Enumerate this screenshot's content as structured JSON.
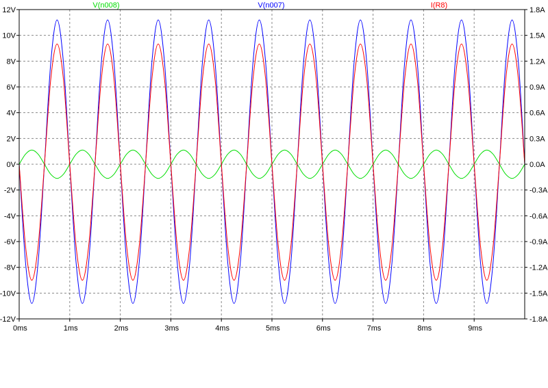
{
  "chart_data": {
    "type": "line",
    "title": "",
    "grid": true,
    "legend_placement": "top",
    "x": {
      "unit": "ms",
      "range": [
        0,
        10
      ],
      "ticks": [
        0,
        1,
        2,
        3,
        4,
        5,
        6,
        7,
        8,
        9
      ],
      "tick_labels": [
        "0ms",
        "1ms",
        "2ms",
        "3ms",
        "4ms",
        "5ms",
        "6ms",
        "7ms",
        "8ms",
        "9ms"
      ]
    },
    "y_left": {
      "unit": "V",
      "range": [
        -12,
        12
      ],
      "ticks": [
        12,
        10,
        8,
        6,
        4,
        2,
        0,
        -2,
        -4,
        -6,
        -8,
        -10,
        -12
      ],
      "tick_labels": [
        "12V",
        "10V",
        "8V",
        "6V",
        "4V",
        "2V",
        "0V",
        "-2V",
        "-4V",
        "-6V",
        "-8V",
        "-10V",
        "-12V"
      ]
    },
    "y_right": {
      "unit": "A",
      "range": [
        -1.8,
        1.8
      ],
      "ticks": [
        1.8,
        1.5,
        1.2,
        0.9,
        0.6,
        0.3,
        0.0,
        -0.3,
        -0.6,
        -0.9,
        -1.2,
        -1.5,
        -1.8
      ],
      "tick_labels": [
        "1.8A",
        "1.5A",
        "1.2A",
        "0.9A",
        "0.6A",
        "0.3A",
        "0.0A",
        "-0.3A",
        "-0.6A",
        "-0.9A",
        "-1.2A",
        "-1.5A",
        "-1.8A"
      ]
    },
    "series": [
      {
        "name": "V(n008)",
        "color": "#00dd00",
        "axis": "left",
        "x": [
          0,
          0.125,
          0.25,
          0.375,
          0.5,
          0.625,
          0.75,
          0.875,
          1,
          1.125,
          1.25,
          1.375,
          1.5,
          1.625,
          1.75,
          1.875,
          2,
          2.125,
          2.25,
          2.375,
          2.5,
          2.625,
          2.75,
          2.875,
          3,
          3.125,
          3.25,
          3.375,
          3.5,
          3.625,
          3.75,
          3.875,
          4,
          4.125,
          4.25,
          4.375,
          4.5,
          4.625,
          4.75,
          4.875,
          5,
          5.125,
          5.25,
          5.375,
          5.5,
          5.625,
          5.75,
          5.875,
          6,
          6.125,
          6.25,
          6.375,
          6.5,
          6.625,
          6.75,
          6.875,
          7,
          7.125,
          7.25,
          7.375,
          7.5,
          7.625,
          7.75,
          7.875,
          8,
          8.125,
          8.25,
          8.375,
          8.5,
          8.625,
          8.75,
          8.875,
          9,
          9.125,
          9.25,
          9.375,
          9.5,
          9.625,
          9.75,
          9.875,
          10
        ],
        "y": [
          0,
          0.78,
          1.1,
          0.78,
          0,
          -0.78,
          -1.1,
          -0.78,
          0,
          0.78,
          1.1,
          0.78,
          0,
          -0.78,
          -1.1,
          -0.78,
          0,
          0.78,
          1.1,
          0.78,
          0,
          -0.78,
          -1.1,
          -0.78,
          0,
          0.78,
          1.1,
          0.78,
          0,
          -0.78,
          -1.1,
          -0.78,
          0,
          0.78,
          1.1,
          0.78,
          0,
          -0.78,
          -1.1,
          -0.78,
          0,
          0.78,
          1.1,
          0.78,
          0,
          -0.78,
          -1.1,
          -0.78,
          0,
          0.78,
          1.1,
          0.78,
          0,
          -0.78,
          -1.1,
          -0.78,
          0,
          0.78,
          1.1,
          0.78,
          0,
          -0.78,
          -1.1,
          -0.78,
          0,
          0.78,
          1.1,
          0.78,
          0,
          -0.78,
          -1.1,
          -0.78,
          0,
          0.78,
          1.1,
          0.78,
          0,
          -0.78,
          -1.1,
          -0.78,
          0
        ]
      },
      {
        "name": "V(n007)",
        "color": "#0000ff",
        "axis": "left",
        "x": [
          0,
          0.125,
          0.25,
          0.375,
          0.5,
          0.625,
          0.75,
          0.875,
          1,
          1.125,
          1.25,
          1.375,
          1.5,
          1.625,
          1.75,
          1.875,
          2,
          2.125,
          2.25,
          2.375,
          2.5,
          2.625,
          2.75,
          2.875,
          3,
          3.125,
          3.25,
          3.375,
          3.5,
          3.625,
          3.75,
          3.875,
          4,
          4.125,
          4.25,
          4.375,
          4.5,
          4.625,
          4.75,
          4.875,
          5,
          5.125,
          5.25,
          5.375,
          5.5,
          5.625,
          5.75,
          5.875,
          6,
          6.125,
          6.25,
          6.375,
          6.5,
          6.625,
          6.75,
          6.875,
          7,
          7.125,
          7.25,
          7.375,
          7.5,
          7.625,
          7.75,
          7.875,
          8,
          8.125,
          8.25,
          8.375,
          8.5,
          8.625,
          8.75,
          8.875,
          9,
          9.125,
          9.25,
          9.375,
          9.5,
          9.625,
          9.75,
          9.875,
          10
        ],
        "y": [
          0,
          -7.6,
          -10.8,
          -7.6,
          0,
          7.9,
          11.2,
          7.9,
          0,
          -7.6,
          -10.8,
          -7.6,
          0,
          7.9,
          11.2,
          7.9,
          0,
          -7.6,
          -10.8,
          -7.6,
          0,
          7.9,
          11.2,
          7.9,
          0,
          -7.6,
          -10.8,
          -7.6,
          0,
          7.9,
          11.2,
          7.9,
          0,
          -7.6,
          -10.8,
          -7.6,
          0,
          7.9,
          11.2,
          7.9,
          0,
          -7.6,
          -10.8,
          -7.6,
          0,
          7.9,
          11.2,
          7.9,
          0,
          -7.6,
          -10.8,
          -7.6,
          0,
          7.9,
          11.2,
          7.9,
          0,
          -7.6,
          -10.8,
          -7.6,
          0,
          7.9,
          11.2,
          7.9,
          0,
          -7.6,
          -10.8,
          -7.6,
          0,
          7.9,
          11.2,
          7.9,
          0,
          -7.6,
          -10.8,
          -7.6,
          0,
          7.9,
          11.2,
          7.9,
          0
        ]
      },
      {
        "name": "I(R8)",
        "color": "#ff0000",
        "axis": "right",
        "x": [
          0,
          0.125,
          0.25,
          0.375,
          0.5,
          0.625,
          0.75,
          0.875,
          1,
          1.125,
          1.25,
          1.375,
          1.5,
          1.625,
          1.75,
          1.875,
          2,
          2.125,
          2.25,
          2.375,
          2.5,
          2.625,
          2.75,
          2.875,
          3,
          3.125,
          3.25,
          3.375,
          3.5,
          3.625,
          3.75,
          3.875,
          4,
          4.125,
          4.25,
          4.375,
          4.5,
          4.625,
          4.75,
          4.875,
          5,
          5.125,
          5.25,
          5.375,
          5.5,
          5.625,
          5.75,
          5.875,
          6,
          6.125,
          6.25,
          6.375,
          6.5,
          6.625,
          6.75,
          6.875,
          7,
          7.125,
          7.25,
          7.375,
          7.5,
          7.625,
          7.75,
          7.875,
          8,
          8.125,
          8.25,
          8.375,
          8.5,
          8.625,
          8.75,
          8.875,
          9,
          9.125,
          9.25,
          9.375,
          9.5,
          9.625,
          9.75,
          9.875,
          10
        ],
        "y": [
          0,
          -0.95,
          -1.35,
          -0.95,
          0,
          0.99,
          1.4,
          0.99,
          0,
          -0.95,
          -1.35,
          -0.95,
          0,
          0.99,
          1.4,
          0.99,
          0,
          -0.95,
          -1.35,
          -0.95,
          0,
          0.99,
          1.4,
          0.99,
          0,
          -0.95,
          -1.35,
          -0.95,
          0,
          0.99,
          1.4,
          0.99,
          0,
          -0.95,
          -1.35,
          -0.95,
          0,
          0.99,
          1.4,
          0.99,
          0,
          -0.95,
          -1.35,
          -0.95,
          0,
          0.99,
          1.4,
          0.99,
          0,
          -0.95,
          -1.35,
          -0.95,
          0,
          0.99,
          1.4,
          0.99,
          0,
          -0.95,
          -1.35,
          -0.95,
          0,
          0.99,
          1.4,
          0.99,
          0,
          -0.95,
          -1.35,
          -0.95,
          0,
          0.99,
          1.4,
          0.99,
          0,
          -0.95,
          -1.35,
          -0.95,
          0,
          0.99,
          1.4,
          0.99,
          0
        ]
      }
    ]
  }
}
